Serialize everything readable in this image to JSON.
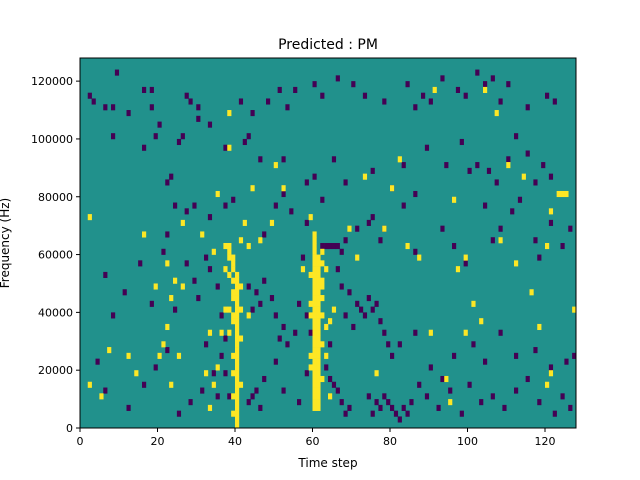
{
  "chart_data": {
    "type": "heatmap",
    "title": "Predicted : PM",
    "xlabel": "Time step",
    "ylabel": "Frequency (Hz)",
    "xlim": [
      0,
      128
    ],
    "ylim": [
      0,
      128000
    ],
    "n_time_steps": 128,
    "n_freq_bins": 64,
    "freq_bin_width": 2000,
    "x_ticks": [
      {
        "value": 0,
        "label": "0"
      },
      {
        "value": 20,
        "label": "20"
      },
      {
        "value": 40,
        "label": "40"
      },
      {
        "value": 60,
        "label": "60"
      },
      {
        "value": 80,
        "label": "80"
      },
      {
        "value": 100,
        "label": "100"
      },
      {
        "value": 120,
        "label": "120"
      }
    ],
    "y_ticks": [
      {
        "value": 0,
        "label": "0"
      },
      {
        "value": 20000,
        "label": "20000"
      },
      {
        "value": 40000,
        "label": "40000"
      },
      {
        "value": 60000,
        "label": "60000"
      },
      {
        "value": 80000,
        "label": "80000"
      },
      {
        "value": 100000,
        "label": "100000"
      },
      {
        "value": 120000,
        "label": "120000"
      }
    ],
    "colors": {
      "background": "#21918c",
      "high": "#fde725",
      "low": "#440154"
    },
    "high_cells": [
      [
        40,
        0
      ],
      [
        40,
        1
      ],
      [
        40,
        2
      ],
      [
        40,
        3
      ],
      [
        40,
        4
      ],
      [
        40,
        5
      ],
      [
        40,
        6
      ],
      [
        40,
        7
      ],
      [
        40,
        8
      ],
      [
        40,
        9
      ],
      [
        40,
        10
      ],
      [
        40,
        11
      ],
      [
        40,
        12
      ],
      [
        40,
        13
      ],
      [
        40,
        14
      ],
      [
        40,
        15
      ],
      [
        40,
        16
      ],
      [
        40,
        17
      ],
      [
        40,
        18
      ],
      [
        40,
        19
      ],
      [
        40,
        20
      ],
      [
        40,
        21
      ],
      [
        40,
        22
      ],
      [
        40,
        23
      ],
      [
        40,
        24
      ],
      [
        40,
        25
      ],
      [
        40,
        26
      ],
      [
        39,
        2
      ],
      [
        39,
        5
      ],
      [
        39,
        9
      ],
      [
        39,
        12
      ],
      [
        39,
        18
      ],
      [
        39,
        19
      ],
      [
        39,
        22
      ],
      [
        39,
        23
      ],
      [
        39,
        25
      ],
      [
        39,
        27
      ],
      [
        39,
        28
      ],
      [
        39,
        29
      ],
      [
        41,
        7
      ],
      [
        41,
        15
      ],
      [
        41,
        20
      ],
      [
        41,
        24
      ],
      [
        41,
        32
      ],
      [
        38,
        16
      ],
      [
        38,
        20
      ],
      [
        38,
        26
      ],
      [
        38,
        29
      ],
      [
        38,
        30
      ],
      [
        43,
        31
      ],
      [
        60,
        3
      ],
      [
        60,
        4
      ],
      [
        60,
        5
      ],
      [
        60,
        6
      ],
      [
        60,
        7
      ],
      [
        60,
        8
      ],
      [
        60,
        9
      ],
      [
        60,
        10
      ],
      [
        60,
        11
      ],
      [
        60,
        12
      ],
      [
        60,
        13
      ],
      [
        60,
        14
      ],
      [
        60,
        15
      ],
      [
        60,
        16
      ],
      [
        60,
        17
      ],
      [
        60,
        18
      ],
      [
        60,
        19
      ],
      [
        60,
        20
      ],
      [
        60,
        21
      ],
      [
        60,
        22
      ],
      [
        60,
        23
      ],
      [
        60,
        24
      ],
      [
        60,
        25
      ],
      [
        60,
        26
      ],
      [
        60,
        27
      ],
      [
        60,
        28
      ],
      [
        60,
        29
      ],
      [
        60,
        30
      ],
      [
        60,
        31
      ],
      [
        60,
        32
      ],
      [
        60,
        33
      ],
      [
        61,
        3
      ],
      [
        61,
        4
      ],
      [
        61,
        5
      ],
      [
        61,
        6
      ],
      [
        61,
        7
      ],
      [
        61,
        8
      ],
      [
        61,
        9
      ],
      [
        61,
        10
      ],
      [
        61,
        11
      ],
      [
        61,
        12
      ],
      [
        61,
        13
      ],
      [
        61,
        14
      ],
      [
        61,
        15
      ],
      [
        61,
        16
      ],
      [
        61,
        17
      ],
      [
        61,
        18
      ],
      [
        61,
        19
      ],
      [
        61,
        20
      ],
      [
        61,
        21
      ],
      [
        61,
        22
      ],
      [
        61,
        23
      ],
      [
        61,
        24
      ],
      [
        61,
        25
      ],
      [
        61,
        26
      ],
      [
        61,
        27
      ],
      [
        61,
        28
      ],
      [
        61,
        29
      ],
      [
        62,
        8
      ],
      [
        62,
        14
      ],
      [
        62,
        19
      ],
      [
        62,
        22
      ],
      [
        62,
        24
      ],
      [
        62,
        25
      ],
      [
        62,
        28
      ],
      [
        62,
        30
      ],
      [
        59,
        10
      ],
      [
        59,
        12
      ],
      [
        59,
        19
      ],
      [
        59,
        21
      ],
      [
        59,
        26
      ],
      [
        63,
        17
      ],
      [
        63,
        27
      ],
      [
        64,
        5
      ],
      [
        64,
        18
      ],
      [
        65,
        20
      ],
      [
        21,
        14
      ],
      [
        22,
        17
      ],
      [
        23,
        7
      ],
      [
        23,
        22
      ],
      [
        24,
        25
      ],
      [
        25,
        12
      ],
      [
        26,
        24
      ],
      [
        32,
        9
      ],
      [
        33,
        3
      ],
      [
        34,
        7
      ],
      [
        35,
        10
      ],
      [
        36,
        16
      ],
      [
        37,
        20
      ],
      [
        37,
        31
      ],
      [
        38,
        31
      ],
      [
        2,
        7
      ],
      [
        2,
        36
      ],
      [
        5,
        5
      ],
      [
        7,
        13
      ],
      [
        12,
        12
      ],
      [
        14,
        9
      ],
      [
        16,
        33
      ],
      [
        19,
        24
      ],
      [
        20,
        12
      ],
      [
        22,
        28
      ],
      [
        26,
        35
      ],
      [
        31,
        33
      ],
      [
        33,
        16
      ],
      [
        34,
        30
      ],
      [
        35,
        40
      ],
      [
        37,
        27
      ],
      [
        38,
        48
      ],
      [
        38,
        54
      ],
      [
        42,
        35
      ],
      [
        43,
        19
      ],
      [
        44,
        41
      ],
      [
        46,
        32
      ],
      [
        49,
        35
      ],
      [
        50,
        45
      ],
      [
        52,
        41
      ],
      [
        57,
        27
      ],
      [
        59,
        36
      ],
      [
        63,
        12
      ],
      [
        69,
        34
      ],
      [
        71,
        29
      ],
      [
        73,
        43
      ],
      [
        76,
        9
      ],
      [
        78,
        34
      ],
      [
        80,
        41
      ],
      [
        82,
        46
      ],
      [
        84,
        31
      ],
      [
        87,
        29
      ],
      [
        90,
        16
      ],
      [
        91,
        58
      ],
      [
        94,
        8
      ],
      [
        95,
        4
      ],
      [
        96,
        39
      ],
      [
        97,
        27
      ],
      [
        99,
        16
      ],
      [
        99,
        29
      ],
      [
        101,
        21
      ],
      [
        103,
        18
      ],
      [
        104,
        58
      ],
      [
        107,
        54
      ],
      [
        108,
        32
      ],
      [
        110,
        45
      ],
      [
        112,
        28
      ],
      [
        114,
        43
      ],
      [
        116,
        23
      ],
      [
        118,
        17
      ],
      [
        120,
        7
      ],
      [
        121,
        9
      ],
      [
        120,
        31
      ],
      [
        121,
        37
      ],
      [
        123,
        40
      ],
      [
        124,
        40
      ],
      [
        125,
        40
      ],
      [
        127,
        20
      ]
    ],
    "low_cells": [
      [
        9,
        61
      ],
      [
        16,
        58
      ],
      [
        18,
        58
      ],
      [
        27,
        57
      ],
      [
        2,
        57
      ],
      [
        3,
        56
      ],
      [
        6,
        55
      ],
      [
        8,
        55
      ],
      [
        12,
        54
      ],
      [
        16,
        48
      ],
      [
        18,
        55
      ],
      [
        20,
        52
      ],
      [
        25,
        49
      ],
      [
        26,
        50
      ],
      [
        28,
        56
      ],
      [
        30,
        53
      ],
      [
        33,
        52
      ],
      [
        41,
        56
      ],
      [
        42,
        49
      ],
      [
        44,
        54
      ],
      [
        48,
        56
      ],
      [
        51,
        58
      ],
      [
        53,
        55
      ],
      [
        55,
        58
      ],
      [
        60,
        59
      ],
      [
        62,
        57
      ],
      [
        66,
        60
      ],
      [
        70,
        59
      ],
      [
        73,
        57
      ],
      [
        78,
        56
      ],
      [
        84,
        59
      ],
      [
        86,
        55
      ],
      [
        88,
        57
      ],
      [
        90,
        56
      ],
      [
        93,
        60
      ],
      [
        97,
        58
      ],
      [
        99,
        57
      ],
      [
        102,
        61
      ],
      [
        104,
        59
      ],
      [
        106,
        60
      ],
      [
        108,
        56
      ],
      [
        110,
        59
      ],
      [
        115,
        55
      ],
      [
        120,
        57
      ],
      [
        122,
        56
      ],
      [
        8,
        50
      ],
      [
        19,
        50
      ],
      [
        30,
        55
      ],
      [
        37,
        48
      ],
      [
        43,
        50
      ],
      [
        46,
        46
      ],
      [
        52,
        46
      ],
      [
        58,
        42
      ],
      [
        60,
        43
      ],
      [
        62,
        39
      ],
      [
        65,
        46
      ],
      [
        68,
        42
      ],
      [
        75,
        44
      ],
      [
        80,
        41
      ],
      [
        83,
        45
      ],
      [
        86,
        40
      ],
      [
        89,
        48
      ],
      [
        94,
        45
      ],
      [
        98,
        49
      ],
      [
        100,
        44
      ],
      [
        102,
        45
      ],
      [
        105,
        44
      ],
      [
        107,
        42
      ],
      [
        110,
        46
      ],
      [
        112,
        50
      ],
      [
        115,
        47
      ],
      [
        117,
        42
      ],
      [
        119,
        45
      ],
      [
        121,
        43
      ],
      [
        22,
        42
      ],
      [
        23,
        43
      ],
      [
        24,
        38
      ],
      [
        27,
        37
      ],
      [
        29,
        38
      ],
      [
        33,
        36
      ],
      [
        37,
        38
      ],
      [
        39,
        39
      ],
      [
        47,
        33
      ],
      [
        50,
        38
      ],
      [
        52,
        40
      ],
      [
        54,
        37
      ],
      [
        58,
        35
      ],
      [
        62,
        31
      ],
      [
        63,
        31
      ],
      [
        64,
        31
      ],
      [
        65,
        31
      ],
      [
        66,
        31
      ],
      [
        67,
        30
      ],
      [
        68,
        32
      ],
      [
        71,
        34
      ],
      [
        74,
        35
      ],
      [
        75,
        36
      ],
      [
        77,
        32
      ],
      [
        78,
        34
      ],
      [
        83,
        38
      ],
      [
        86,
        30
      ],
      [
        93,
        34
      ],
      [
        96,
        31
      ],
      [
        99,
        28
      ],
      [
        104,
        38
      ],
      [
        106,
        32
      ],
      [
        108,
        34
      ],
      [
        111,
        37
      ],
      [
        113,
        39
      ],
      [
        117,
        32
      ],
      [
        118,
        29
      ],
      [
        121,
        35
      ],
      [
        124,
        31
      ],
      [
        126,
        34
      ],
      [
        6,
        26
      ],
      [
        8,
        19
      ],
      [
        11,
        23
      ],
      [
        15,
        28
      ],
      [
        18,
        21
      ],
      [
        21,
        30
      ],
      [
        22,
        33
      ],
      [
        24,
        20
      ],
      [
        27,
        28
      ],
      [
        29,
        25
      ],
      [
        30,
        22
      ],
      [
        32,
        29
      ],
      [
        33,
        27
      ],
      [
        35,
        24
      ],
      [
        36,
        19
      ],
      [
        37,
        15
      ],
      [
        43,
        24
      ],
      [
        44,
        20
      ],
      [
        45,
        23
      ],
      [
        46,
        21
      ],
      [
        47,
        25
      ],
      [
        49,
        22
      ],
      [
        50,
        19
      ],
      [
        51,
        15
      ],
      [
        52,
        17
      ],
      [
        53,
        14
      ],
      [
        55,
        16
      ],
      [
        56,
        21
      ],
      [
        57,
        29
      ],
      [
        58,
        19
      ],
      [
        59,
        16
      ],
      [
        64,
        14
      ],
      [
        66,
        27
      ],
      [
        67,
        24
      ],
      [
        68,
        19
      ],
      [
        69,
        23
      ],
      [
        70,
        17
      ],
      [
        71,
        21
      ],
      [
        72,
        20
      ],
      [
        73,
        19
      ],
      [
        74,
        22
      ],
      [
        75,
        20
      ],
      [
        76,
        21
      ],
      [
        77,
        18
      ],
      [
        78,
        16
      ],
      [
        79,
        14
      ],
      [
        80,
        12
      ],
      [
        82,
        14
      ],
      [
        86,
        16
      ],
      [
        90,
        10
      ],
      [
        93,
        8
      ],
      [
        96,
        12
      ],
      [
        101,
        14
      ],
      [
        104,
        11
      ],
      [
        108,
        16
      ],
      [
        112,
        12
      ],
      [
        117,
        13
      ],
      [
        121,
        10
      ],
      [
        125,
        11
      ],
      [
        127,
        12
      ],
      [
        4,
        11
      ],
      [
        6,
        6
      ],
      [
        12,
        3
      ],
      [
        16,
        7
      ],
      [
        19,
        10
      ],
      [
        22,
        13
      ],
      [
        25,
        2
      ],
      [
        28,
        4
      ],
      [
        31,
        6
      ],
      [
        32,
        14
      ],
      [
        34,
        9
      ],
      [
        35,
        5
      ],
      [
        36,
        12
      ],
      [
        37,
        9
      ],
      [
        38,
        5
      ],
      [
        43,
        4
      ],
      [
        44,
        5
      ],
      [
        45,
        6
      ],
      [
        46,
        3
      ],
      [
        47,
        8
      ],
      [
        50,
        11
      ],
      [
        52,
        6
      ],
      [
        56,
        4
      ],
      [
        58,
        9
      ],
      [
        63,
        10
      ],
      [
        64,
        8
      ],
      [
        65,
        7
      ],
      [
        66,
        6
      ],
      [
        67,
        4
      ],
      [
        68,
        2
      ],
      [
        69,
        3
      ],
      [
        74,
        5
      ],
      [
        75,
        2
      ],
      [
        76,
        4
      ],
      [
        77,
        3
      ],
      [
        78,
        5
      ],
      [
        79,
        4
      ],
      [
        80,
        3
      ],
      [
        81,
        2
      ],
      [
        82,
        1
      ],
      [
        83,
        3
      ],
      [
        84,
        2
      ],
      [
        85,
        4
      ],
      [
        87,
        7
      ],
      [
        89,
        5
      ],
      [
        92,
        3
      ],
      [
        95,
        6
      ],
      [
        98,
        2
      ],
      [
        100,
        7
      ],
      [
        103,
        4
      ],
      [
        106,
        5
      ],
      [
        109,
        3
      ],
      [
        112,
        6
      ],
      [
        115,
        8
      ],
      [
        118,
        4
      ],
      [
        122,
        2
      ],
      [
        124,
        5
      ],
      [
        126,
        3
      ]
    ]
  }
}
